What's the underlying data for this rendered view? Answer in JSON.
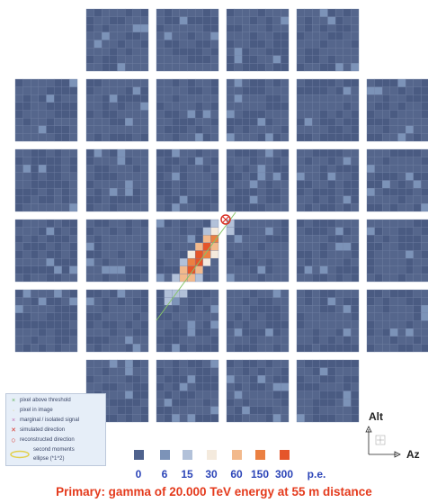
{
  "colors": {
    "background": "#ffffff",
    "pixel_base": "#4a5b80",
    "scale": [
      "#4f628d",
      "#7c93b8",
      "#b2c1d9",
      "#f4eadd",
      "#f2b98c",
      "#eb8042",
      "#e5552a"
    ],
    "accent_text": "#2c45b8",
    "caption": "#e43a1c"
  },
  "legend": {
    "items": [
      {
        "icon": "x-green",
        "text": "pixel above threshold"
      },
      {
        "icon": "dot-yellow",
        "text": "pixel in image"
      },
      {
        "icon": "x-pink",
        "text": "marginal / isolated signal"
      },
      {
        "icon": "x-red",
        "text": "simulated direction"
      },
      {
        "icon": "circle-red",
        "text": "reconstructed direction"
      },
      {
        "icon": "ellipse-yellow",
        "text": "second moments"
      },
      {
        "icon": "",
        "text": "ellipse (*1^2)"
      }
    ]
  },
  "color_scale": {
    "labels": [
      "0",
      "6",
      "15",
      "30",
      "60",
      "150",
      "300"
    ],
    "unit": "p.e."
  },
  "axes": {
    "alt": "Alt",
    "az": "Az"
  },
  "caption": "Primary: gamma of 20.000 TeV energy at 55 m distance"
}
